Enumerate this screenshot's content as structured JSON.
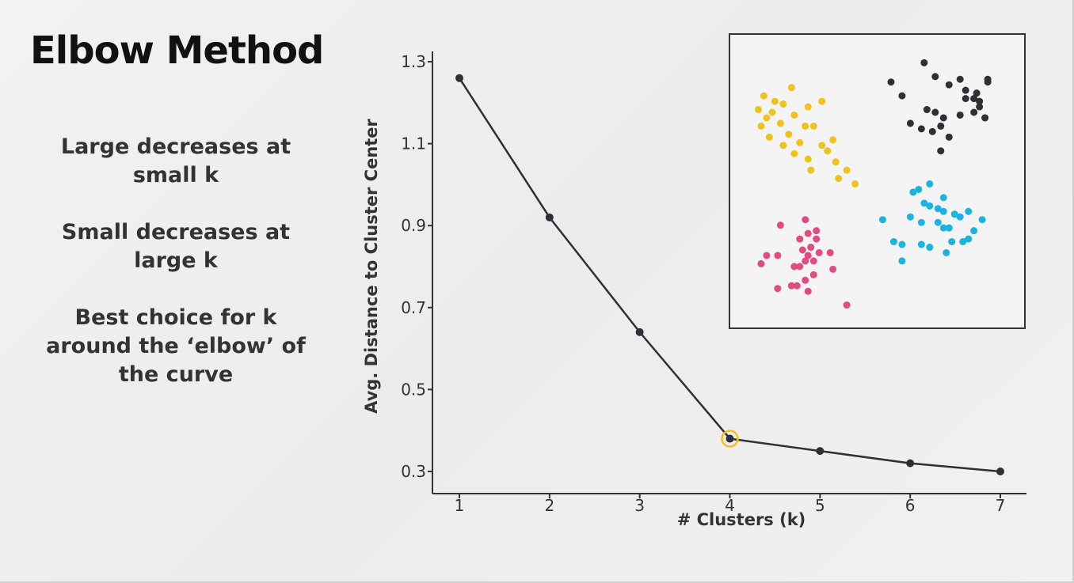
{
  "slide": {
    "title": "Elbow Method",
    "bullets": [
      "Large decreases at small k",
      "Small decreases at large k",
      "Best choice for k around the ‘elbow’ of the curve"
    ]
  },
  "colors": {
    "line": "#2d3136",
    "highlight": "#f0c21d",
    "cluster_yellow": "#f0c21d",
    "cluster_black": "#2d3136",
    "cluster_pink": "#e24a82",
    "cluster_cyan": "#1bb3e0"
  },
  "chart_data": [
    {
      "type": "line",
      "title": "",
      "xlabel": "# Clusters (k)",
      "ylabel": "Avg. Distance to Cluster Center",
      "x": [
        1,
        2,
        3,
        4,
        5,
        6,
        7
      ],
      "y": [
        1.26,
        0.92,
        0.64,
        0.38,
        0.35,
        0.32,
        0.3
      ],
      "xticks": [
        1,
        2,
        3,
        4,
        5,
        6,
        7
      ],
      "yticks": [
        0.3,
        0.5,
        0.7,
        0.9,
        1.1,
        1.3
      ],
      "ytick_labels": [
        "0.3",
        "0.5",
        "0.7",
        "0.9",
        "1.1",
        "1.3"
      ],
      "xlim": [
        0.7,
        7.3
      ],
      "ylim": [
        0.24,
        1.3
      ],
      "highlighted_point": {
        "x": 4,
        "y": 0.38
      },
      "grid": false,
      "legend": "none"
    },
    {
      "type": "scatter",
      "title": "",
      "xlabel": "",
      "ylabel": "",
      "xlim": [
        0,
        10
      ],
      "ylim": [
        0,
        10
      ],
      "axes_visible": false,
      "series": [
        {
          "color": "#f0c21d",
          "x": [
            0.9,
            1.3,
            0.7,
            1.0,
            1.6,
            1.9,
            1.2,
            2.5,
            3.0,
            0.8,
            1.5,
            2.0,
            2.4,
            1.1,
            1.8,
            2.7,
            3.4,
            1.6,
            2.2,
            3.0,
            2.0,
            2.5,
            3.2,
            3.5,
            2.6,
            3.9,
            3.6,
            4.2
          ],
          "y": [
            8.1,
            7.9,
            7.6,
            7.3,
            7.8,
            8.4,
            7.5,
            7.7,
            7.9,
            7.0,
            7.1,
            7.4,
            7.0,
            6.6,
            6.7,
            7.0,
            6.5,
            6.3,
            6.4,
            6.3,
            6.0,
            5.8,
            6.1,
            5.7,
            5.4,
            5.4,
            5.1,
            4.9
          ]
        },
        {
          "color": "#2d3136",
          "x": [
            6.7,
            5.5,
            5.9,
            7.1,
            7.6,
            8.0,
            8.2,
            8.6,
            9.0,
            6.8,
            7.1,
            7.4,
            6.2,
            7.3,
            8.0,
            8.5,
            8.7,
            8.2,
            7.0,
            6.6,
            9.0,
            8.9,
            8.7,
            8.5,
            7.6,
            7.3,
            8.9
          ],
          "y": [
            9.3,
            8.6,
            8.1,
            8.8,
            8.5,
            8.7,
            8.3,
            8.2,
            8.7,
            7.6,
            7.5,
            7.3,
            7.1,
            7.0,
            7.4,
            7.5,
            7.7,
            8.0,
            6.8,
            6.9,
            8.6,
            7.3,
            7.9,
            8.0,
            6.6,
            6.1,
            7.3
          ]
        },
        {
          "color": "#e24a82",
          "x": [
            2.4,
            1.5,
            2.8,
            2.5,
            2.8,
            2.2,
            2.3,
            2.6,
            2.9,
            2.5,
            1.4,
            1.0,
            2.4,
            2.7,
            3.3,
            3.4,
            2.2,
            2.0,
            0.8,
            2.7,
            2.4,
            2.1,
            1.9,
            1.4,
            2.5,
            3.9
          ],
          "y": [
            3.6,
            3.4,
            3.2,
            3.1,
            2.9,
            2.9,
            2.5,
            2.6,
            2.4,
            2.3,
            2.3,
            2.3,
            2.1,
            2.1,
            2.4,
            1.8,
            1.9,
            1.9,
            2.0,
            1.6,
            1.4,
            1.2,
            1.2,
            1.1,
            1.0,
            0.5
          ]
        },
        {
          "color": "#1bb3e0",
          "x": [
            6.9,
            6.5,
            6.3,
            6.7,
            7.4,
            6.9,
            7.2,
            7.4,
            7.8,
            8.0,
            8.3,
            8.8,
            5.2,
            6.2,
            6.6,
            7.2,
            7.4,
            7.6,
            6.6,
            6.9,
            7.7,
            8.5,
            8.1,
            8.3,
            5.6,
            5.9,
            7.5,
            5.9
          ],
          "y": [
            4.9,
            4.7,
            4.6,
            4.2,
            4.4,
            4.1,
            4.0,
            3.9,
            3.8,
            3.7,
            3.9,
            3.6,
            3.6,
            3.7,
            3.5,
            3.5,
            3.3,
            3.3,
            2.7,
            2.6,
            2.8,
            3.2,
            2.8,
            2.9,
            2.8,
            2.7,
            2.4,
            2.1
          ]
        }
      ]
    }
  ]
}
